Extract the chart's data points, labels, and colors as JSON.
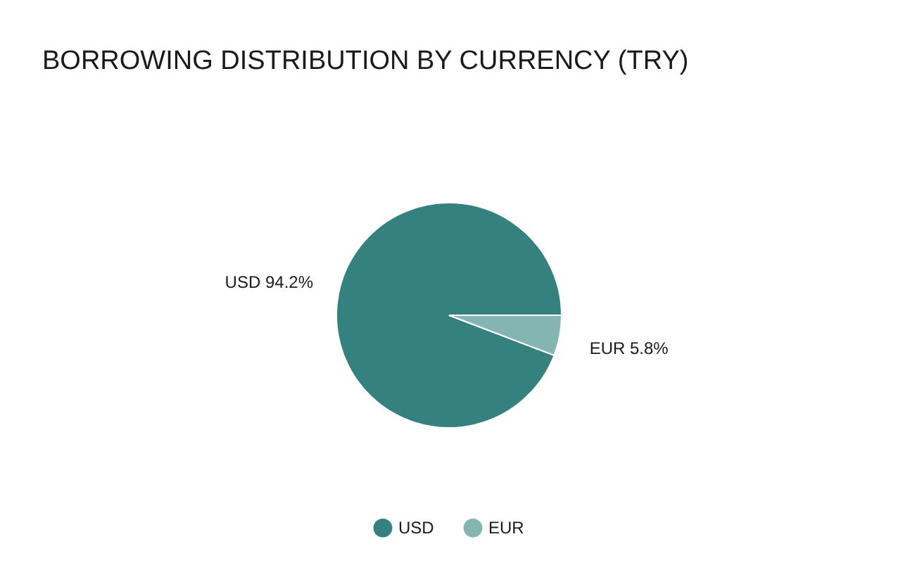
{
  "chart_data": {
    "type": "pie",
    "title": "BORROWING DISTRIBUTION BY CURRENCY (TRY)",
    "categories": [
      "USD",
      "EUR"
    ],
    "values": [
      94.2,
      5.8
    ],
    "colors": [
      "#35817f",
      "#85b5b3"
    ],
    "value_labels": [
      "USD 94.2%",
      "EUR 5.8%"
    ],
    "legend": "bottom"
  }
}
